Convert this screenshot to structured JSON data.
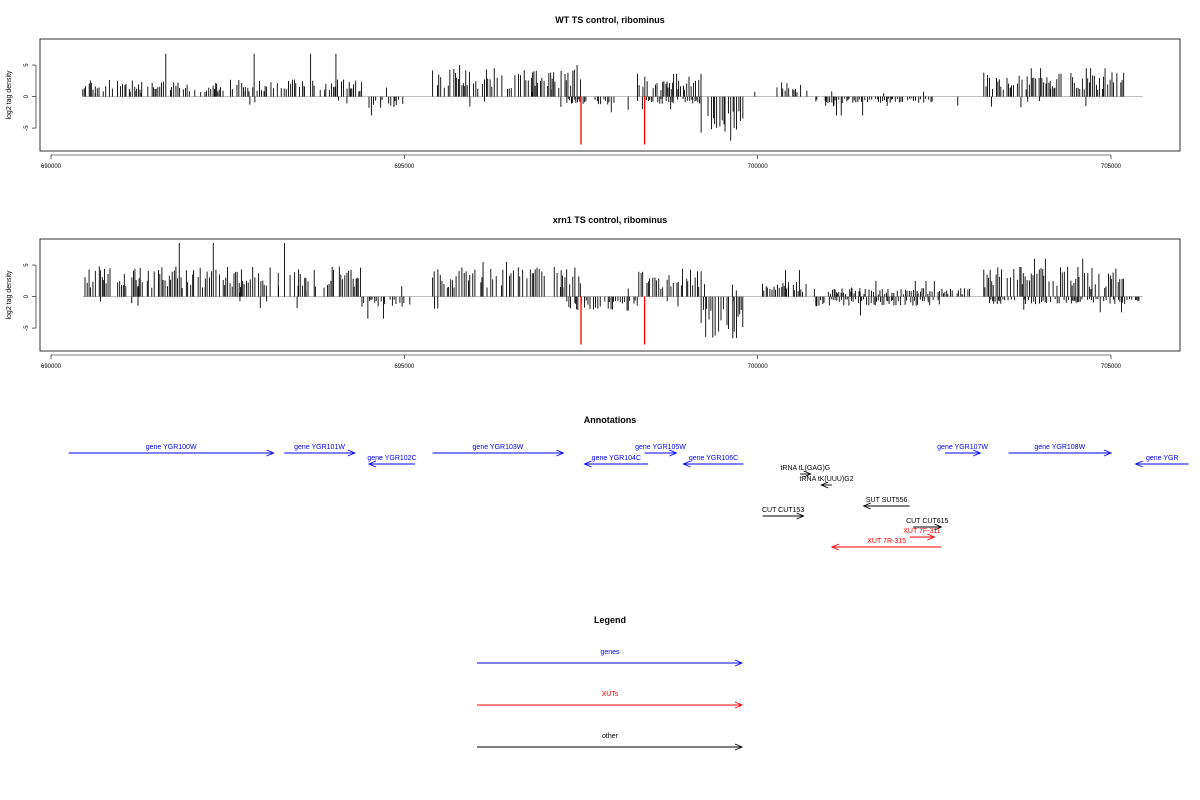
{
  "colors": {
    "gene": "#0000ff",
    "xut": "#ff0000",
    "other": "#000000",
    "signal": "#000000",
    "highlight": "#ff0000",
    "baseline": "#999999"
  },
  "chart_data": [
    {
      "type": "bar",
      "title": "WT TS control, ribominus",
      "ylabel": "log2 tag density",
      "xlim": [
        690000,
        706000
      ],
      "ylim": [
        -8,
        8.5
      ],
      "xticks": [
        690000,
        695000,
        700000,
        705000
      ],
      "xtick_labels": [
        "690000",
        "695000",
        "700000",
        "705000"
      ],
      "yticks": [
        -5,
        0,
        5
      ],
      "ytick_labels": [
        "-5",
        "0",
        "5"
      ],
      "baseline_range": [
        690450,
        705450
      ],
      "positive_regions": [
        {
          "start": 690450,
          "end": 694400,
          "mean": 1.8,
          "peak": 6.8
        },
        {
          "start": 695400,
          "end": 697500,
          "mean": 3.0,
          "peak": 5.0
        },
        {
          "start": 698300,
          "end": 699200,
          "mean": 2.5,
          "peak": 3.6
        },
        {
          "start": 700250,
          "end": 700700,
          "mean": 1.5,
          "peak": 3.8
        },
        {
          "start": 703200,
          "end": 705200,
          "mean": 2.6,
          "peak": 4.5
        }
      ],
      "negative_regions": [
        {
          "start": 698300,
          "end": 699200,
          "mean": -0.8,
          "peak": -2.0
        },
        {
          "start": 699200,
          "end": 699800,
          "mean": -4.0,
          "peak": -7.0
        },
        {
          "start": 694500,
          "end": 695000,
          "mean": -1.2,
          "peak": -3.0
        },
        {
          "start": 697300,
          "end": 698000,
          "mean": -0.9,
          "peak": -2.5
        },
        {
          "start": 700800,
          "end": 702500,
          "mean": -0.7,
          "peak": -3.0
        }
      ],
      "highlight_bars": [
        {
          "x": 697500,
          "y": -7.6
        },
        {
          "x": 698400,
          "y": -7.6
        }
      ]
    },
    {
      "type": "bar",
      "title": "xrn1 TS control, ribominus",
      "ylabel": "log2 tag density",
      "xlim": [
        690000,
        706000
      ],
      "ylim": [
        -8,
        8.5
      ],
      "xticks": [
        690000,
        695000,
        700000,
        705000
      ],
      "xtick_labels": [
        "690000",
        "695000",
        "700000",
        "705000"
      ],
      "yticks": [
        -5,
        0,
        5
      ],
      "ytick_labels": [
        "-5",
        "0",
        "5"
      ],
      "baseline_range": [
        690450,
        705450
      ],
      "positive_regions": [
        {
          "start": 690450,
          "end": 694400,
          "mean": 3.2,
          "peak": 8.5
        },
        {
          "start": 695400,
          "end": 697500,
          "mean": 3.2,
          "peak": 5.5
        },
        {
          "start": 698300,
          "end": 699200,
          "mean": 3.0,
          "peak": 5.5
        },
        {
          "start": 700050,
          "end": 700700,
          "mean": 1.6,
          "peak": 4.2
        },
        {
          "start": 701000,
          "end": 703000,
          "mean": 0.9,
          "peak": 2.5
        },
        {
          "start": 703200,
          "end": 705200,
          "mean": 3.2,
          "peak": 6.0
        }
      ],
      "negative_regions": [
        {
          "start": 694400,
          "end": 695000,
          "mean": -1.2,
          "peak": -3.5
        },
        {
          "start": 697300,
          "end": 698300,
          "mean": -1.5,
          "peak": -5.0
        },
        {
          "start": 699200,
          "end": 699800,
          "mean": -4.5,
          "peak": -7.5
        },
        {
          "start": 700800,
          "end": 702600,
          "mean": -1.0,
          "peak": -3.0
        },
        {
          "start": 703300,
          "end": 705400,
          "mean": -0.8,
          "peak": -2.5
        }
      ],
      "highlight_bars": [
        {
          "x": 697500,
          "y": -7.6
        },
        {
          "x": 698400,
          "y": -7.6
        }
      ]
    }
  ],
  "annotations": {
    "title": "Annotations",
    "features": [
      {
        "label": "gene YGR100W",
        "start": 690250,
        "end": 693150,
        "strand": "+",
        "type": "gene",
        "row": 0
      },
      {
        "label": "gene YGR101W",
        "start": 693300,
        "end": 694300,
        "strand": "+",
        "type": "gene",
        "row": 0
      },
      {
        "label": "gene YGR102C",
        "start": 694500,
        "end": 695150,
        "strand": "-",
        "type": "gene",
        "row": 1
      },
      {
        "label": "gene YGR103W",
        "start": 695400,
        "end": 697250,
        "strand": "+",
        "type": "gene",
        "row": 0
      },
      {
        "label": "gene YGR104C",
        "start": 697550,
        "end": 698450,
        "strand": "-",
        "type": "gene",
        "row": 1
      },
      {
        "label": "gene YGR105W",
        "start": 698400,
        "end": 698850,
        "strand": "+",
        "type": "gene",
        "row": 0
      },
      {
        "label": "gene YGR106C",
        "start": 698950,
        "end": 699800,
        "strand": "-",
        "type": "gene",
        "row": 1
      },
      {
        "label": "tRNA tL(GAG)G",
        "start": 700600,
        "end": 700750,
        "strand": "+",
        "type": "other",
        "row": 2
      },
      {
        "label": "tRNA tK(UUU)G2",
        "start": 700900,
        "end": 701050,
        "strand": "-",
        "type": "other",
        "row": 3
      },
      {
        "label": "SUT SUT556",
        "start": 701500,
        "end": 702150,
        "strand": "-",
        "type": "other",
        "row": 4
      },
      {
        "label": "CUT CUT153",
        "start": 700070,
        "end": 700650,
        "strand": "+",
        "type": "other",
        "row": 5
      },
      {
        "label": "CUT CUT615",
        "start": 702200,
        "end": 702600,
        "strand": "+",
        "type": "other",
        "row": 6
      },
      {
        "label": "XUT 7F-311",
        "start": 702150,
        "end": 702500,
        "strand": "+",
        "type": "xut",
        "row": 7
      },
      {
        "label": "XUT 7R-315",
        "start": 701050,
        "end": 702600,
        "strand": "-",
        "type": "xut",
        "row": 8
      },
      {
        "label": "gene YGR107W",
        "start": 702650,
        "end": 703150,
        "strand": "+",
        "type": "gene",
        "row": 0
      },
      {
        "label": "gene YGR108W",
        "start": 703550,
        "end": 705000,
        "strand": "+",
        "type": "gene",
        "row": 0
      },
      {
        "label": "gene YGR",
        "start": 705350,
        "end": 706100,
        "strand": "-",
        "type": "gene",
        "row": 1
      }
    ]
  },
  "legend": {
    "title": "Legend",
    "items": [
      {
        "label": "genes",
        "type": "gene"
      },
      {
        "label": "XUTs",
        "type": "xut"
      },
      {
        "label": "other",
        "type": "other"
      }
    ]
  }
}
